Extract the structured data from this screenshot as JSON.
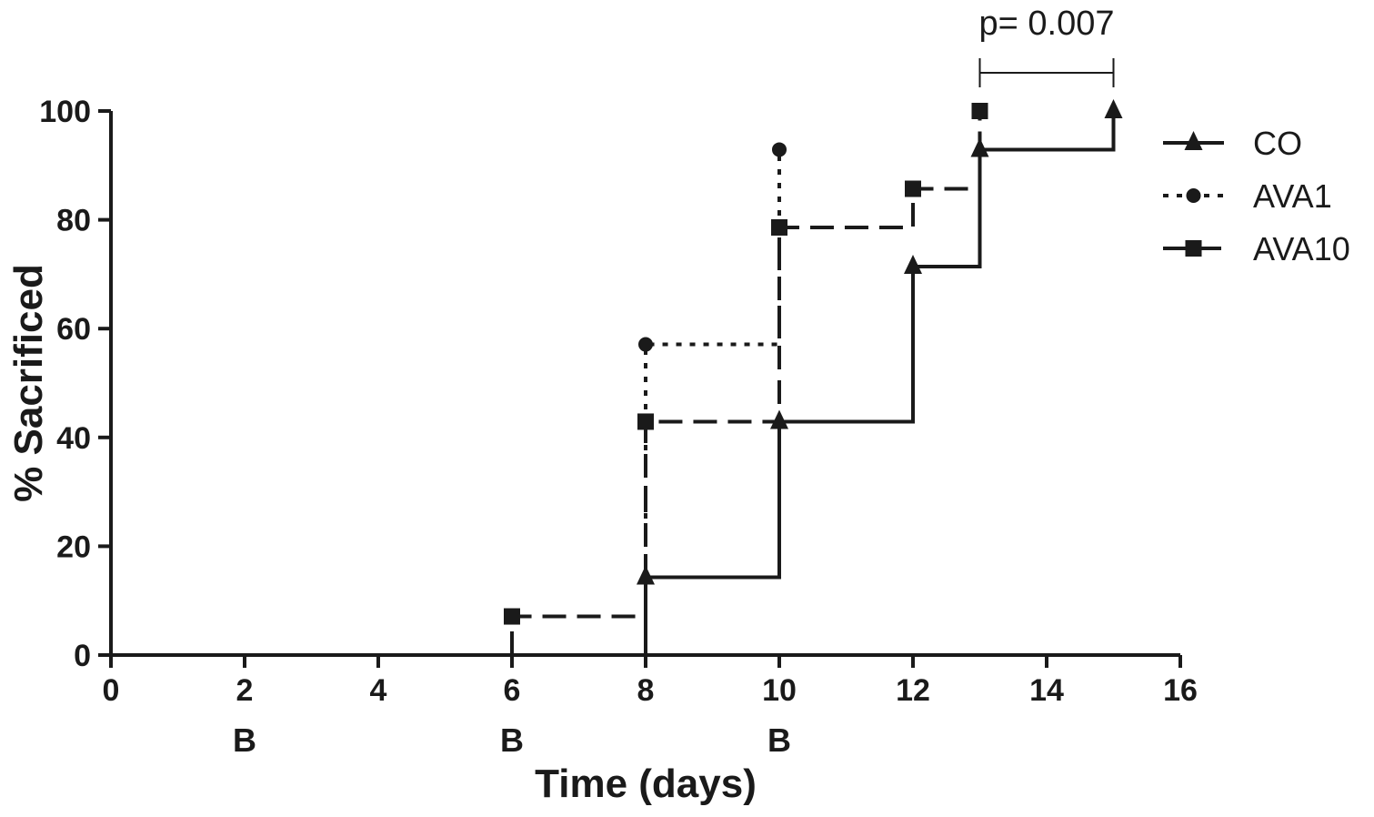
{
  "chart_data": {
    "type": "line",
    "step": true,
    "title": "",
    "xlabel": "Time (days)",
    "ylabel": "% Sacrificed",
    "xlim": [
      0,
      16
    ],
    "ylim": [
      0,
      100
    ],
    "xticks": [
      "0",
      "2",
      "4",
      "6",
      "8",
      "10",
      "12",
      "14",
      "16"
    ],
    "yticks": [
      "0",
      "20",
      "40",
      "60",
      "80",
      "100"
    ],
    "grid": false,
    "legend_position": "right",
    "b_markers": [
      {
        "x": 2,
        "label": "B"
      },
      {
        "x": 6,
        "label": "B"
      },
      {
        "x": 10,
        "label": "B"
      }
    ],
    "annotation": {
      "text": "p= 0.007",
      "from_x": 13,
      "to_x": 15
    },
    "series": [
      {
        "name": "CO",
        "line_style": "solid",
        "marker": "triangle",
        "x": [
          8,
          10,
          12,
          13,
          15
        ],
        "y": [
          14.3,
          42.9,
          71.4,
          92.9,
          100
        ]
      },
      {
        "name": "AVA1",
        "line_style": "dotted",
        "marker": "circle",
        "x": [
          8,
          10
        ],
        "y": [
          57.1,
          92.9
        ]
      },
      {
        "name": "AVA10",
        "line_style": "dashed",
        "marker": "square",
        "x": [
          6,
          8,
          10,
          12,
          13
        ],
        "y": [
          7.1,
          42.9,
          78.6,
          85.7,
          100
        ]
      }
    ],
    "colors": {
      "ink": "#1a1a1a"
    }
  }
}
